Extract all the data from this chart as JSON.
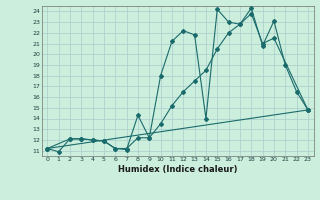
{
  "title": "",
  "xlabel": "Humidex (Indice chaleur)",
  "xlim": [
    -0.5,
    23.5
  ],
  "ylim": [
    10.5,
    24.5
  ],
  "bg_color": "#cceedd",
  "line_color": "#1a6b6b",
  "grid_color": "#aacccc",
  "x_ticks": [
    0,
    1,
    2,
    3,
    4,
    5,
    6,
    7,
    8,
    9,
    10,
    11,
    12,
    13,
    14,
    15,
    16,
    17,
    18,
    19,
    20,
    21,
    22,
    23
  ],
  "y_ticks": [
    11,
    12,
    13,
    14,
    15,
    16,
    17,
    18,
    19,
    20,
    21,
    22,
    23,
    24
  ],
  "line1_x": [
    0,
    1,
    2,
    3,
    4,
    5,
    6,
    7,
    8,
    9,
    10,
    11,
    12,
    13,
    14,
    15,
    16,
    17,
    18,
    19,
    20,
    21,
    22,
    23
  ],
  "line1_y": [
    11.2,
    10.9,
    12.1,
    12.1,
    12.0,
    11.9,
    11.2,
    11.1,
    14.3,
    12.2,
    18.0,
    21.2,
    22.2,
    21.8,
    14.0,
    24.2,
    23.0,
    22.8,
    24.3,
    20.8,
    23.1,
    19.0,
    16.5,
    14.8
  ],
  "line2_x": [
    0,
    2,
    3,
    4,
    5,
    6,
    7,
    8,
    9,
    10,
    11,
    12,
    13,
    14,
    15,
    16,
    17,
    18,
    19,
    20,
    23
  ],
  "line2_y": [
    11.2,
    12.1,
    12.1,
    12.0,
    11.9,
    11.2,
    11.2,
    12.2,
    12.2,
    13.5,
    15.2,
    16.5,
    17.5,
    18.5,
    20.5,
    22.0,
    22.8,
    23.8,
    21.0,
    21.5,
    14.8
  ],
  "line3_x": [
    0,
    23
  ],
  "line3_y": [
    11.2,
    14.8
  ]
}
